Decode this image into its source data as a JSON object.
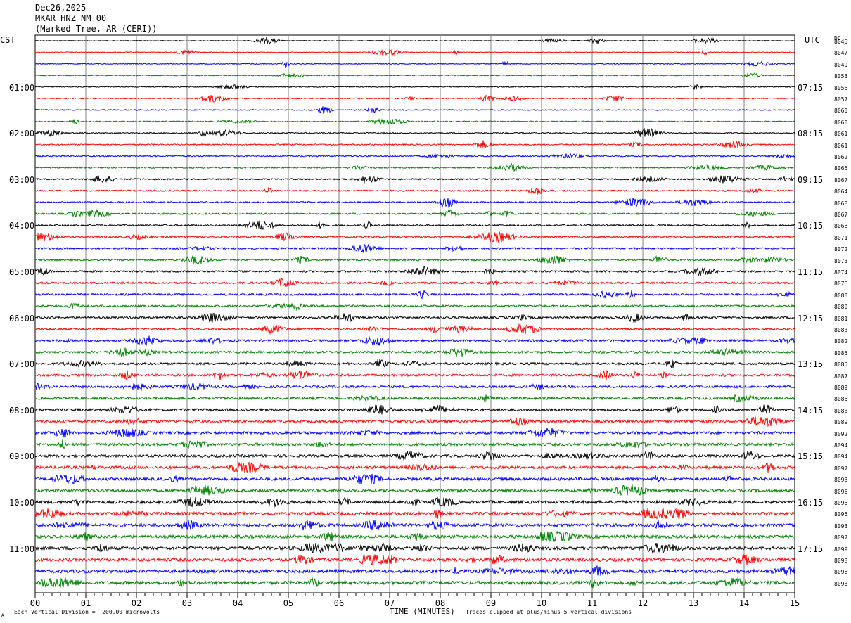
{
  "header": {
    "date": "Dec26,2025",
    "station": "MKAR HNZ NM 00",
    "location": "(Marked Tree, AR (CERI))"
  },
  "left_axis": {
    "label": "CST",
    "hours": [
      "01:00",
      "02:00",
      "03:00",
      "04:00",
      "05:00",
      "06:00",
      "07:00",
      "08:00",
      "09:00",
      "10:00",
      "11:00"
    ]
  },
  "right_axis": {
    "label": "UTC",
    "hours": [
      "07:15",
      "08:15",
      "09:15",
      "10:15",
      "11:15",
      "12:15",
      "13:15",
      "14:15",
      "15:15",
      "16:15",
      "17:15"
    ]
  },
  "dc_label": "DC",
  "dc_values": [
    "8045",
    "8047",
    "8049",
    "8053",
    "8056",
    "8057",
    "8060",
    "8060",
    "8061",
    "8061",
    "8062",
    "8065",
    "8067",
    "8064",
    "8068",
    "8067",
    "8068",
    "8071",
    "8072",
    "8073",
    "8074",
    "8076",
    "8080",
    "8080",
    "8081",
    "8083",
    "8082",
    "8085",
    "8085",
    "8087",
    "8089",
    "8086",
    "8088",
    "8089",
    "8092",
    "8094",
    "8094",
    "8097",
    "8093",
    "8096",
    "8096",
    "8095",
    "8093",
    "8097",
    "8099",
    "8098",
    "8098",
    "8098"
  ],
  "footer": {
    "scale": "Each Vertical Division =  200.00 microvolts",
    "xlabel": "TIME (MINUTES)",
    "clip_note": "Traces clipped at plus/minus 5 vertical divisions",
    "corner": "A"
  },
  "colors": {
    "black": "#000000",
    "red": "#ff0000",
    "blue": "#0000ff",
    "green": "#008000",
    "grid": "#808080"
  },
  "chart_data": {
    "type": "line",
    "title": "MKAR HNZ NM 00",
    "xlabel": "TIME (MINUTES)",
    "xlim": [
      0,
      15
    ],
    "x_ticks": [
      "00",
      "01",
      "02",
      "03",
      "04",
      "05",
      "06",
      "07",
      "08",
      "09",
      "10",
      "11",
      "12",
      "13",
      "14",
      "15"
    ],
    "trace_count": 48,
    "trace_interval_minutes": 15,
    "trace_colors_cycle": [
      "black",
      "red",
      "blue",
      "green"
    ]
  }
}
